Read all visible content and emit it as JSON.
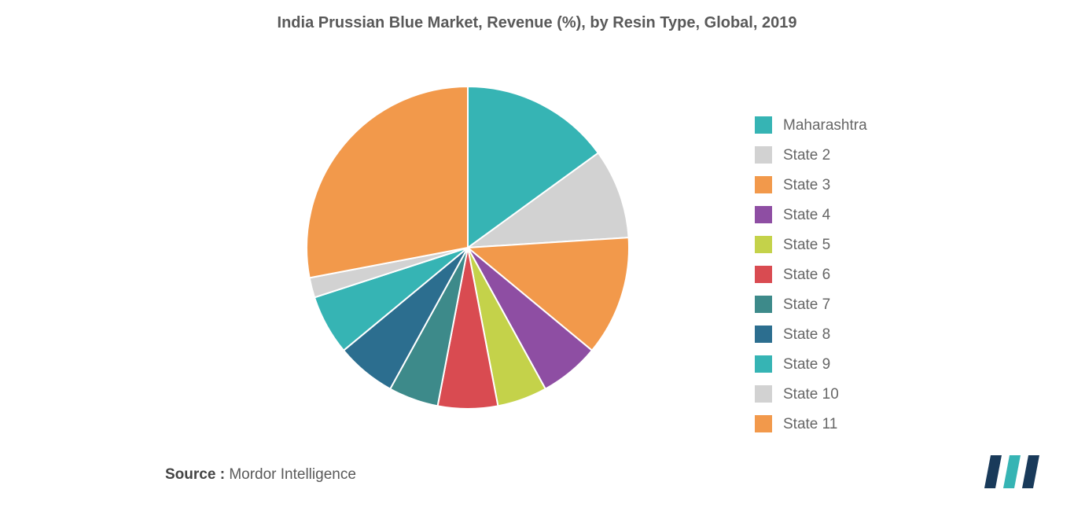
{
  "title": "India Prussian Blue Market, Revenue (%), by Resin Type, Global, 2019",
  "source_label": "Source :",
  "source_value": "Mordor Intelligence",
  "chart": {
    "type": "pie",
    "background_color": "#ffffff",
    "title_fontsize": 20,
    "title_color": "#595959",
    "legend_fontsize": 19,
    "legend_color": "#666666",
    "swatch_size": 22,
    "pie_radius": 205,
    "series": [
      {
        "label": "Maharashtra",
        "value": 15,
        "color": "#36b4b4"
      },
      {
        "label": "State 2",
        "value": 9,
        "color": "#d2d2d2"
      },
      {
        "label": "State 3",
        "value": 12,
        "color": "#f2994b"
      },
      {
        "label": "State 4",
        "value": 6,
        "color": "#8e4ea3"
      },
      {
        "label": "State 5",
        "value": 5,
        "color": "#c4d24a"
      },
      {
        "label": "State 6",
        "value": 6,
        "color": "#d94b51"
      },
      {
        "label": "State 7",
        "value": 5,
        "color": "#3d8a8a"
      },
      {
        "label": "State 8",
        "value": 6,
        "color": "#2c6e8f"
      },
      {
        "label": "State 9",
        "value": 6,
        "color": "#36b4b4"
      },
      {
        "label": "State 10",
        "value": 2,
        "color": "#d2d2d2"
      },
      {
        "label": "State 11",
        "value": 28,
        "color": "#f2994b"
      }
    ]
  },
  "logo": {
    "bar1_color": "#193a5a",
    "bar2_color": "#36b4b4",
    "bar3_color": "#193a5a"
  }
}
